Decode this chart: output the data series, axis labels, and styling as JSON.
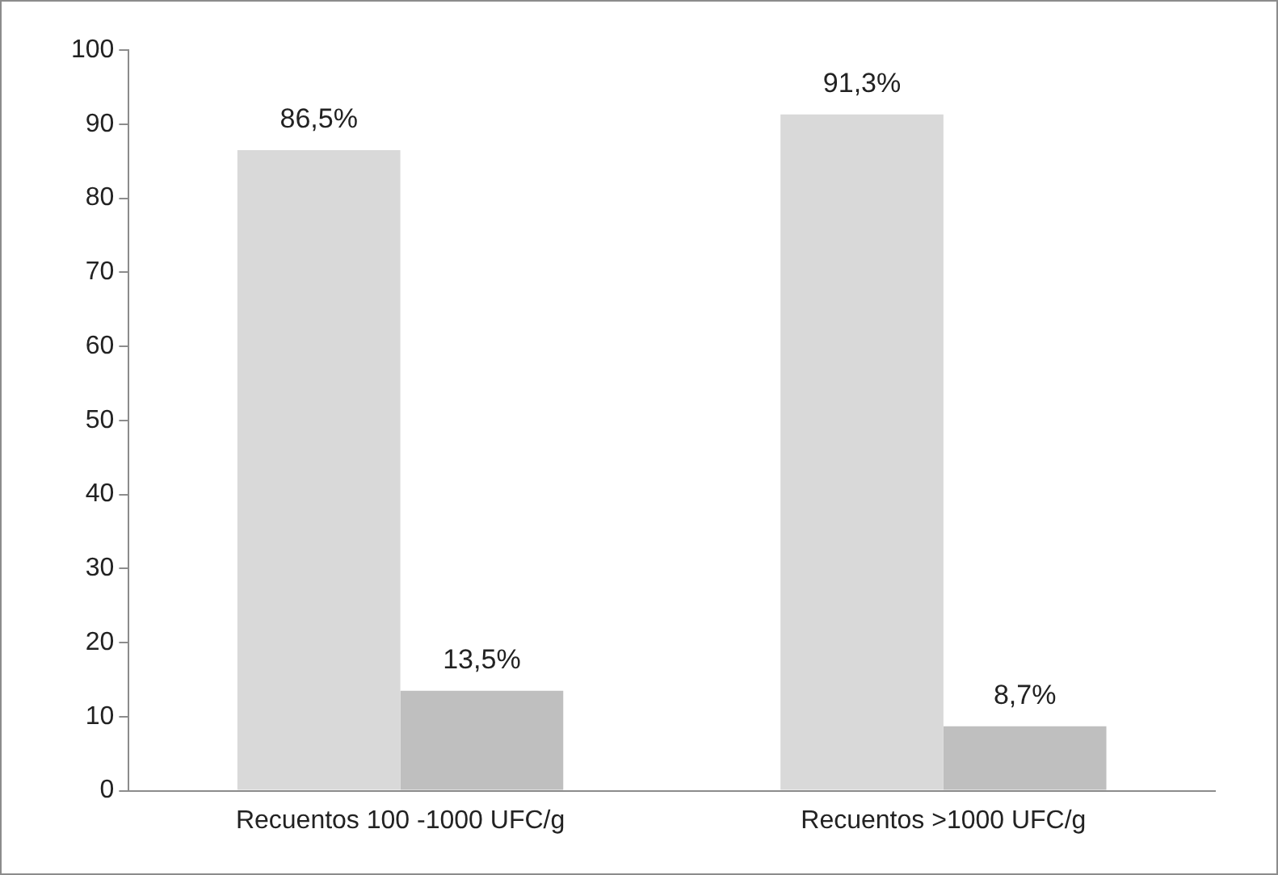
{
  "chart_data": {
    "type": "bar",
    "categories": [
      "Recuentos 100 -1000 UFC/g",
      "Recuentos >1000 UFC/g"
    ],
    "series": [
      {
        "color": "#d9d9d9",
        "values": [
          86.5,
          91.3
        ],
        "value_labels": [
          "86,5%",
          "91,3%"
        ]
      },
      {
        "color": "#bfbfbf",
        "values": [
          13.5,
          8.7
        ],
        "value_labels": [
          "13,5%",
          "8,7%"
        ]
      }
    ],
    "ylim": [
      0,
      100
    ],
    "yticks": [
      0,
      10,
      20,
      30,
      40,
      50,
      60,
      70,
      80,
      90,
      100
    ],
    "grid": false,
    "legend": false
  }
}
